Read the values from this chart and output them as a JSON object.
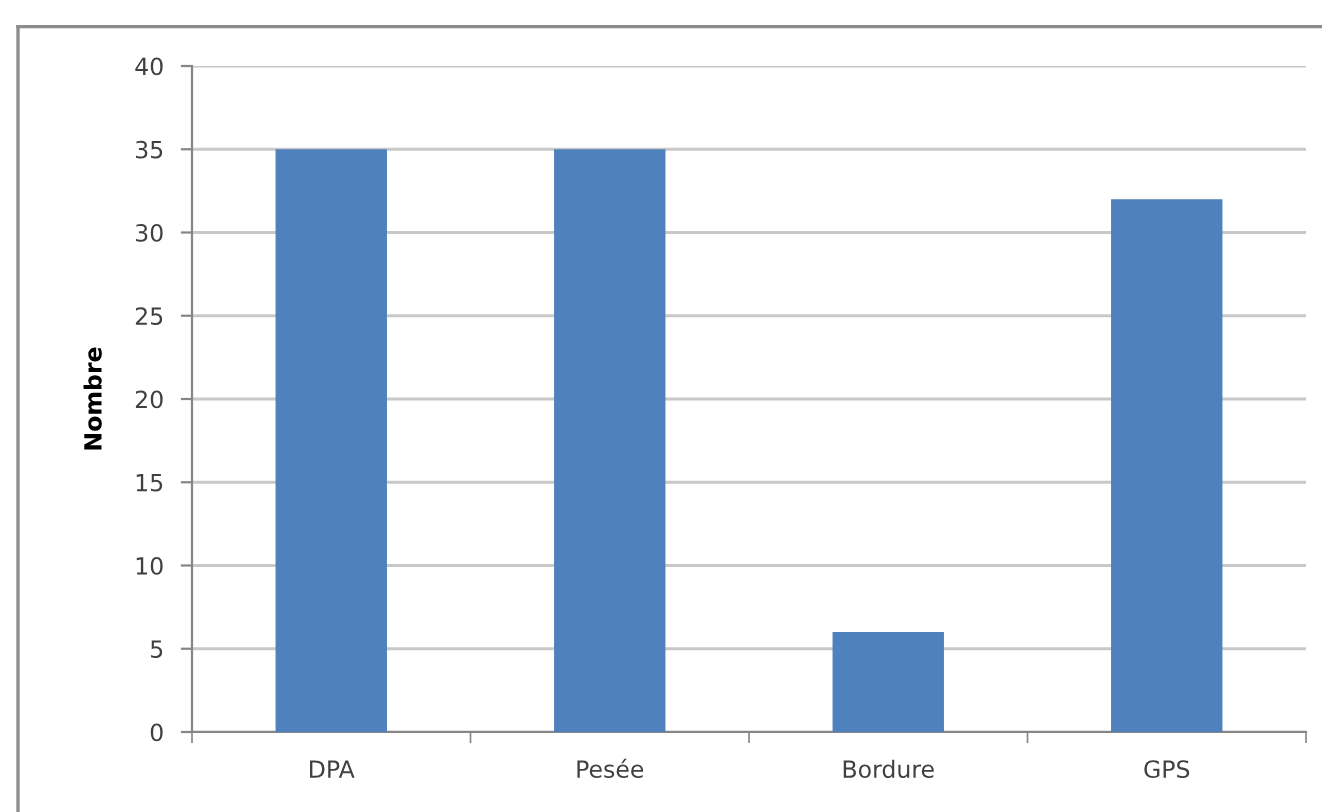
{
  "chart_data": {
    "type": "bar",
    "ylabel": "Nombre",
    "categories": [
      "DPA",
      "Pesée",
      "Bordure",
      "GPS"
    ],
    "values": [
      35,
      35,
      6,
      32
    ],
    "color": "#4f81bd",
    "ylim": [
      0,
      40
    ],
    "yticks": [
      0,
      5,
      10,
      15,
      20,
      25,
      30,
      35,
      40
    ],
    "grid": "y"
  }
}
